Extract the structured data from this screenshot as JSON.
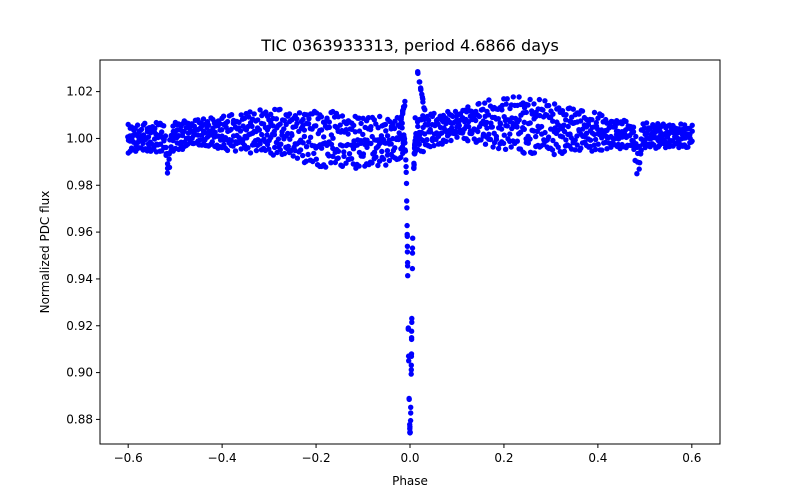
{
  "chart_data": {
    "type": "scatter",
    "title": "TIC 0363933313, period 4.6866 days",
    "xlabel": "Phase",
    "ylabel": "Normalized PDC flux",
    "xlim": [
      -0.66,
      0.66
    ],
    "ylim": [
      0.8695,
      1.0335
    ],
    "xticks": [
      -0.6,
      -0.4,
      -0.2,
      0.0,
      0.2,
      0.4,
      0.6
    ],
    "xtick_labels": [
      "−0.6",
      "−0.4",
      "−0.2",
      "0.0",
      "0.2",
      "0.4",
      "0.6"
    ],
    "yticks": [
      0.88,
      0.9,
      0.92,
      0.94,
      0.96,
      0.98,
      1.0,
      1.02
    ],
    "ytick_labels": [
      "0.88",
      "0.90",
      "0.92",
      "0.94",
      "0.96",
      "0.98",
      "1.00",
      "1.02"
    ],
    "grid": false,
    "marker_color": "#0000ff",
    "phase_range": [
      -0.6,
      0.6
    ],
    "primary_eclipse": {
      "center_phase": 0.0,
      "min_flux": 0.875
    },
    "secondary_eclipses": [
      {
        "center_phase": -0.515,
        "min_flux": 0.986
      },
      {
        "center_phase": 0.485,
        "min_flux": 0.986
      }
    ],
    "post_eclipse_peak": {
      "phase": 0.02,
      "flux": 1.029
    },
    "pre_eclipse_peak": {
      "phase": -0.01,
      "flux": 1.016
    },
    "band_envelope": [
      {
        "phase": -0.6,
        "upper": 1.006,
        "lower": 0.993
      },
      {
        "phase": -0.45,
        "upper": 1.008,
        "lower": 0.996
      },
      {
        "phase": -0.3,
        "upper": 1.013,
        "lower": 0.993
      },
      {
        "phase": -0.15,
        "upper": 1.012,
        "lower": 0.986
      },
      {
        "phase": -0.05,
        "upper": 1.009,
        "lower": 0.988
      },
      {
        "phase": 0.1,
        "upper": 1.012,
        "lower": 1.0
      },
      {
        "phase": 0.2,
        "upper": 1.019,
        "lower": 0.994
      },
      {
        "phase": 0.3,
        "upper": 1.016,
        "lower": 0.993
      },
      {
        "phase": 0.45,
        "upper": 1.008,
        "lower": 0.995
      },
      {
        "phase": 0.6,
        "upper": 1.006,
        "lower": 0.996
      }
    ]
  }
}
